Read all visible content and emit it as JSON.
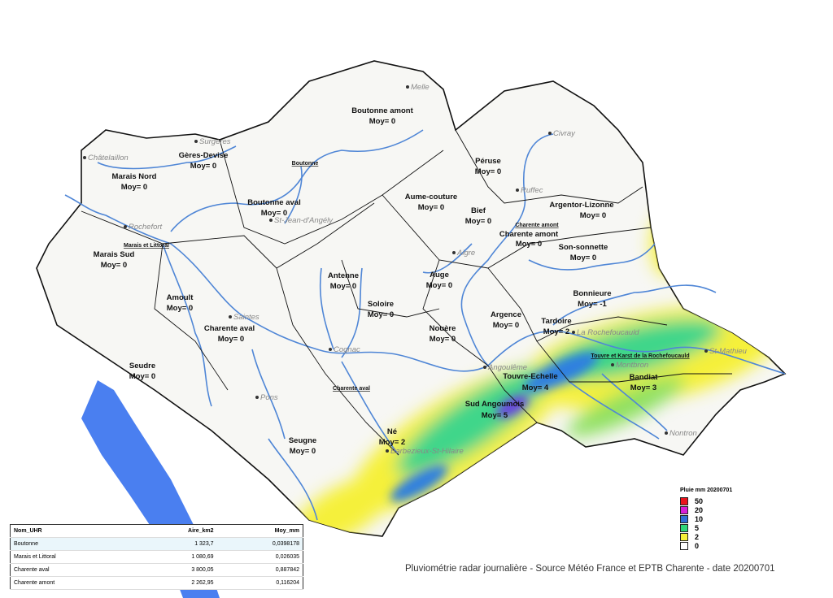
{
  "zones": [
    {
      "name": "Boutonne amont",
      "moy": "Moy= 0"
    },
    {
      "name": "Gères-Devise",
      "moy": "Moy= 0"
    },
    {
      "name": "Marais Nord",
      "moy": "Moy= 0"
    },
    {
      "name": "Boutonne aval",
      "moy": "Moy= 0"
    },
    {
      "name": "Aume-couture",
      "moy": "Moy= 0"
    },
    {
      "name": "Péruse",
      "moy": "Moy= 0"
    },
    {
      "name": "Bief",
      "moy": "Moy= 0"
    },
    {
      "name": "Charente amont",
      "moy": "Moy= 0"
    },
    {
      "name": "Argentor-Lizonne",
      "moy": "Moy= 0"
    },
    {
      "name": "Son-sonnette",
      "moy": "Moy= 0"
    },
    {
      "name": "Marais Sud",
      "moy": "Moy= 0"
    },
    {
      "name": "Antenne",
      "moy": "Moy= 0"
    },
    {
      "name": "Auge",
      "moy": "Moy= 0"
    },
    {
      "name": "Soloire",
      "moy": "Moy= 0"
    },
    {
      "name": "Amoult",
      "moy": "Moy= 0"
    },
    {
      "name": "Bonnieure",
      "moy": "Moy= -1"
    },
    {
      "name": "Argence",
      "moy": "Moy= 0"
    },
    {
      "name": "Tardoire",
      "moy": "Moy= 2"
    },
    {
      "name": "Charente aval",
      "moy": "Moy= 0"
    },
    {
      "name": "Nouère",
      "moy": "Moy= 0"
    },
    {
      "name": "Seudre",
      "moy": "Moy= 0"
    },
    {
      "name": "Touvre-Echelle",
      "moy": "Moy= 4"
    },
    {
      "name": "Bandiat",
      "moy": "Moy= 3"
    },
    {
      "name": "Sud Angoumois",
      "moy": "Moy= 5"
    },
    {
      "name": "Né",
      "moy": "Moy= 2"
    },
    {
      "name": "Seugne",
      "moy": "Moy= 0"
    }
  ],
  "towns": [
    "Melle",
    "Surgères",
    "Châtelaillon",
    "Civray",
    "Ruffec",
    "St-Jean-d'Angély",
    "Rochefort",
    "Aigre",
    "Saintes",
    "Cognac",
    "La Rochefoucauld",
    "Angoulême",
    "St-Mathieu",
    "Montbron",
    "Pons",
    "Nontron",
    "Barbezieux-St-Hilaire"
  ],
  "basins": [
    "Boutonne",
    "Marais et Littoral",
    "Charente amont",
    "Touvre et Karst de la Rochefoucauld",
    "Charente aval"
  ],
  "legend": {
    "title": "Pluie mm 20200701",
    "items": [
      {
        "label": "50",
        "color": "#e8141c"
      },
      {
        "label": "20",
        "color": "#d61fd6"
      },
      {
        "label": "10",
        "color": "#2f6fd6"
      },
      {
        "label": "5",
        "color": "#2fd67a"
      },
      {
        "label": "2",
        "color": "#f5f03a"
      },
      {
        "label": "0",
        "color": "#ffffff"
      }
    ]
  },
  "table": {
    "headers": [
      "Nom_UHR",
      "Aire_km2",
      "Moy_mm"
    ],
    "rows": [
      [
        "Boutonne",
        "1 323,7",
        "0,0398178"
      ],
      [
        "Marais et Littoral",
        "1 080,69",
        "0,026035"
      ],
      [
        "Charente aval",
        "3 800,05",
        "0,887842"
      ],
      [
        "Charente amont",
        "2 262,95",
        "0,116204"
      ]
    ]
  },
  "caption": "Pluviométrie radar journalière - Source Météo France et EPTB Charente - date 20200701",
  "colors": {
    "river": "#4f86d6",
    "estuary": "#4a7ff0",
    "boundary": "#111111",
    "land": "#f7f7f4"
  }
}
